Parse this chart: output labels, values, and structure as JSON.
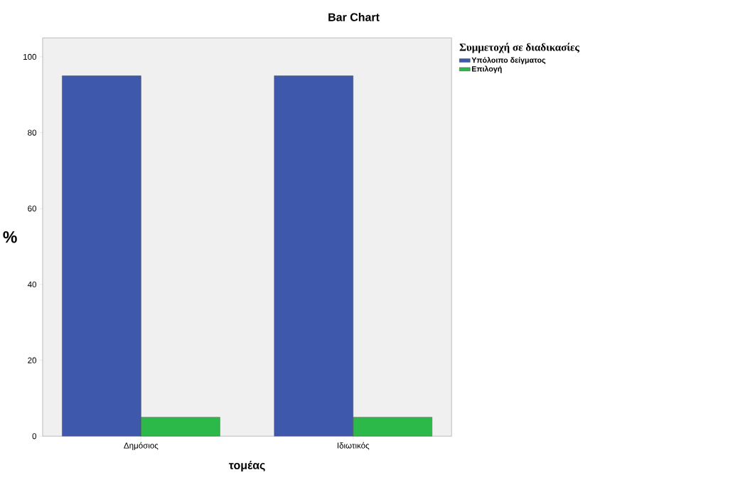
{
  "chart_data": {
    "type": "bar",
    "title": "Bar Chart",
    "xlabel": "τομέας",
    "ylabel": "%",
    "legend_title": "Συμμετοχή σε διαδικασίες",
    "categories": [
      "Δημόσιος",
      "Ιδιωτικός"
    ],
    "series": [
      {
        "name": "Υπόλοιπο δείγματος",
        "color": "#3e58ac",
        "values": [
          95,
          95
        ]
      },
      {
        "name": "Επιλογή",
        "color": "#2db84a",
        "values": [
          5,
          5
        ]
      }
    ],
    "ylim": [
      0,
      105
    ],
    "yticks": [
      0,
      20,
      40,
      60,
      80,
      100
    ],
    "legend": "top right",
    "grid": false
  }
}
